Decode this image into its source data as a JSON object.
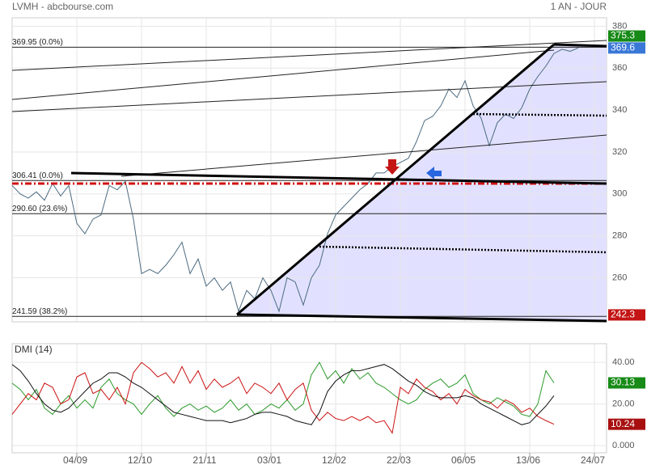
{
  "chart_data": [
    {
      "type": "line",
      "title": "LVMH - abcbourse.com",
      "subtitle": "1 AN - JOUR",
      "color": "#4d6b80",
      "values": [
        304,
        300,
        298,
        301,
        297,
        305,
        299,
        304,
        286,
        281,
        288,
        290,
        304,
        302,
        306,
        288,
        262,
        264,
        262,
        266,
        271,
        277,
        262,
        269,
        256,
        260,
        254,
        258,
        244,
        254,
        250,
        260,
        254,
        244,
        260,
        258,
        247,
        260,
        266,
        281,
        290,
        294,
        298,
        302,
        305,
        310,
        310,
        313,
        315,
        317,
        325,
        335,
        337,
        342,
        350,
        346,
        354,
        342,
        336,
        323,
        334,
        338,
        336,
        341,
        350,
        356,
        361,
        367,
        369,
        368,
        369.6,
        null,
        null
      ],
      "ylim": [
        239,
        384
      ],
      "yticks": [
        260,
        280,
        300,
        320,
        340,
        360,
        380
      ],
      "grid": true,
      "levels": [
        {
          "value": 369.95,
          "label": "369.95  (0.0%)"
        },
        {
          "value": 306.41,
          "label": "306.41  (0.0%)"
        },
        {
          "value": 290.6,
          "label": "290.60  (23.6%)"
        },
        {
          "value": 241.59,
          "label": "241.59  (38.2%)"
        }
      ],
      "markers": [
        {
          "value": 375.3,
          "color": "#178a17"
        },
        {
          "value": 369.6,
          "color": "#3a78d8"
        },
        {
          "value": 242.3,
          "color": "#c41414"
        }
      ]
    },
    {
      "type": "line",
      "title": "DMI (14)",
      "categories": [
        null,
        null,
        null,
        null,
        null,
        null,
        null,
        null,
        "04/09",
        null,
        null,
        null,
        null,
        null,
        null,
        null,
        "12/10",
        null,
        null,
        null,
        null,
        null,
        null,
        null,
        "21/11",
        null,
        null,
        null,
        null,
        null,
        null,
        null,
        "03/01",
        null,
        null,
        null,
        null,
        null,
        null,
        null,
        "12/02",
        null,
        null,
        null,
        null,
        null,
        null,
        null,
        "22/03",
        null,
        null,
        null,
        null,
        null,
        null,
        null,
        "06/05",
        null,
        null,
        null,
        null,
        null,
        null,
        null,
        "13/06",
        null,
        null,
        null,
        null,
        null,
        null,
        null,
        "24/07"
      ],
      "series": [
        {
          "color": "#2a9a2a",
          "values": [
            30,
            27,
            22,
            27,
            18,
            15,
            20,
            24,
            18,
            22,
            18,
            28,
            32,
            25,
            22,
            20,
            15,
            20,
            24,
            18,
            14,
            18,
            20,
            17,
            19,
            16,
            18,
            22,
            17,
            20,
            15,
            17,
            20,
            18,
            22,
            17,
            20,
            34,
            40,
            32,
            36,
            30,
            37,
            32,
            35,
            30,
            28,
            25,
            22,
            20,
            22,
            27,
            30,
            32,
            28,
            30,
            34,
            25,
            22,
            20,
            23,
            21,
            19,
            15,
            14,
            20,
            36,
            30.13,
            null,
            null,
            null,
            null,
            null
          ]
        },
        {
          "color": "#cc1111",
          "values": [
            15,
            20,
            25,
            22,
            30,
            28,
            20,
            22,
            33,
            35,
            25,
            27,
            22,
            28,
            20,
            35,
            40,
            37,
            33,
            35,
            30,
            38,
            30,
            36,
            27,
            32,
            28,
            30,
            33,
            25,
            30,
            28,
            25,
            30,
            22,
            27,
            30,
            17,
            12,
            16,
            13,
            12,
            14,
            12,
            14,
            11,
            12,
            6,
            28,
            25,
            32,
            28,
            26,
            22,
            25,
            20,
            27,
            24,
            22,
            21,
            18,
            22,
            20,
            16,
            18,
            14,
            12,
            10.24,
            null,
            null,
            null,
            null,
            null
          ]
        },
        {
          "color": "#111111",
          "values": [
            39,
            36,
            31,
            25,
            20,
            17,
            16,
            18,
            22,
            26,
            30,
            32,
            35,
            35,
            33,
            30,
            28,
            25,
            22,
            19,
            16,
            15,
            14,
            13,
            12,
            12,
            12,
            11,
            12,
            13,
            15,
            16,
            16,
            15,
            14,
            12,
            11,
            10,
            16,
            26,
            31,
            34,
            36,
            36,
            37,
            38,
            39,
            37,
            34,
            31,
            29,
            26,
            24,
            23,
            23,
            23,
            24,
            23,
            20,
            18,
            16,
            14,
            12,
            10,
            11,
            15,
            19,
            24,
            null,
            null,
            null,
            null,
            null
          ]
        }
      ],
      "ylim": [
        -3.5,
        49
      ],
      "yticks": [
        {
          "value": 0,
          "label": "0.000"
        },
        {
          "value": 20,
          "label": "20.00"
        },
        {
          "value": 40,
          "label": "40.00"
        }
      ],
      "grid": true,
      "markers": [
        {
          "value": 30.13,
          "color": "#178a17"
        },
        {
          "value": 10.24,
          "color": "#a81010"
        }
      ]
    }
  ]
}
